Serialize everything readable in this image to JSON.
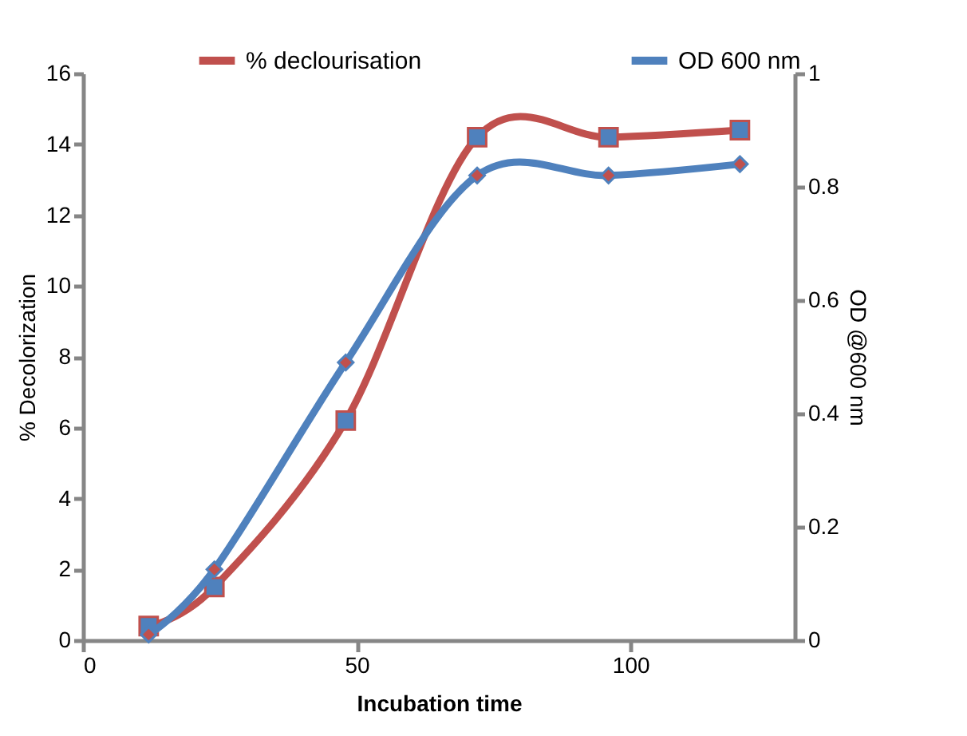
{
  "chart_data": {
    "type": "line",
    "xlabel": "Incubation time",
    "ylabel": "% Decolorization",
    "y2label": "OD @600 nm",
    "x": [
      12,
      24,
      48,
      72,
      96,
      120
    ],
    "series": [
      {
        "name": "% declourisation",
        "color": "#c0504d",
        "marker": "square",
        "values": [
          0.4,
          1.5,
          6.2,
          14.2,
          14.2,
          14.4
        ]
      },
      {
        "name": "OD 600 nm",
        "color": "#4f81bd",
        "marker": "diamond",
        "axis": "y2",
        "values": [
          0.01,
          0.125,
          0.49,
          0.82,
          0.82,
          0.84
        ]
      }
    ],
    "xlim": [
      0,
      130
    ],
    "xticks": [
      0,
      50,
      100
    ],
    "ylim": [
      0,
      16
    ],
    "yticks": [
      0,
      2,
      4,
      6,
      8,
      10,
      12,
      14,
      16
    ],
    "y2lim": [
      0,
      1
    ],
    "y2ticks": [
      0,
      0.2,
      0.4,
      0.6,
      0.8,
      1
    ],
    "grid": false,
    "legend": "top",
    "line_style": "solid"
  }
}
